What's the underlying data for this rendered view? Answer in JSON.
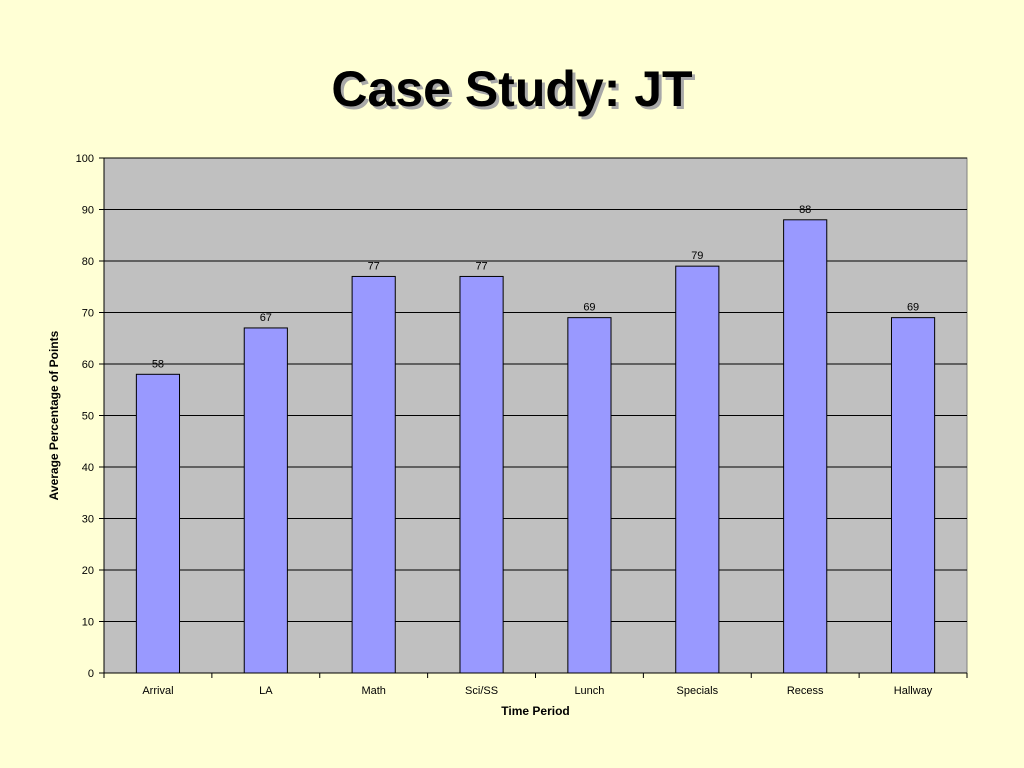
{
  "slide": {
    "title": "Case Study: JT"
  },
  "chart_data": {
    "type": "bar",
    "categories": [
      "Arrival",
      "LA",
      "Math",
      "Sci/SS",
      "Lunch",
      "Specials",
      "Recess",
      "Hallway"
    ],
    "values": [
      58,
      67,
      77,
      77,
      69,
      79,
      88,
      69
    ],
    "xlabel": "Time Period",
    "ylabel": "Average Percentage of Points",
    "ylim": [
      0,
      100
    ],
    "yticks": [
      0,
      10,
      20,
      30,
      40,
      50,
      60,
      70,
      80,
      90,
      100
    ],
    "grid": true,
    "legend": "none",
    "colors": {
      "bar_fill": "#9999FF",
      "bar_stroke": "#000000",
      "plot_background": "#C0C0C0",
      "gridline": "#000000",
      "slide_background": "#FFFFD5"
    }
  }
}
